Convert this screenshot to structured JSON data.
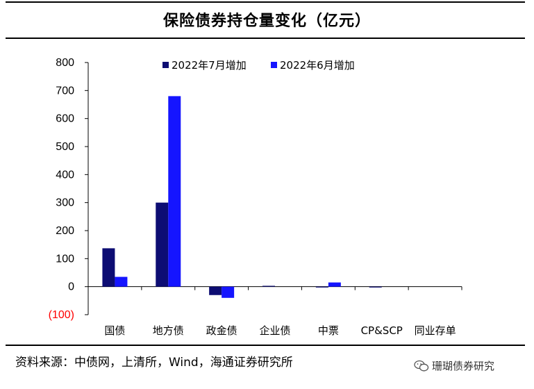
{
  "header": {
    "title": "保险债券持仓量变化（亿元）"
  },
  "footer": {
    "source": "资料来源：中债网，上清所，Wind，海通证券研究所",
    "watermark": "珊瑚债券研究",
    "watermark_icon": "wechat-icon"
  },
  "colors": {
    "series_jul": "#0d0d73",
    "series_jun": "#1515ff",
    "negative_tick": "#ff0000"
  },
  "chart_data": {
    "type": "bar",
    "title": "保险债券持仓量变化（亿元）",
    "categories": [
      "国债",
      "地方债",
      "政金债",
      "企业债",
      "中票",
      "CP&SCP",
      "同业存单"
    ],
    "series": [
      {
        "name": "2022年7月增加",
        "values": [
          137,
          300,
          -30,
          3,
          -3,
          -3,
          0
        ]
      },
      {
        "name": "2022年6月增加",
        "values": [
          35,
          680,
          -40,
          0,
          15,
          0,
          0
        ]
      }
    ],
    "ylim": [
      -100,
      800
    ],
    "yticks": [
      800,
      700,
      600,
      500,
      400,
      300,
      200,
      100,
      0,
      -100
    ],
    "ytick_labels": [
      "800",
      "700",
      "600",
      "500",
      "400",
      "300",
      "200",
      "100",
      "0",
      "(100)"
    ],
    "legend_position": "top",
    "grid": false
  }
}
